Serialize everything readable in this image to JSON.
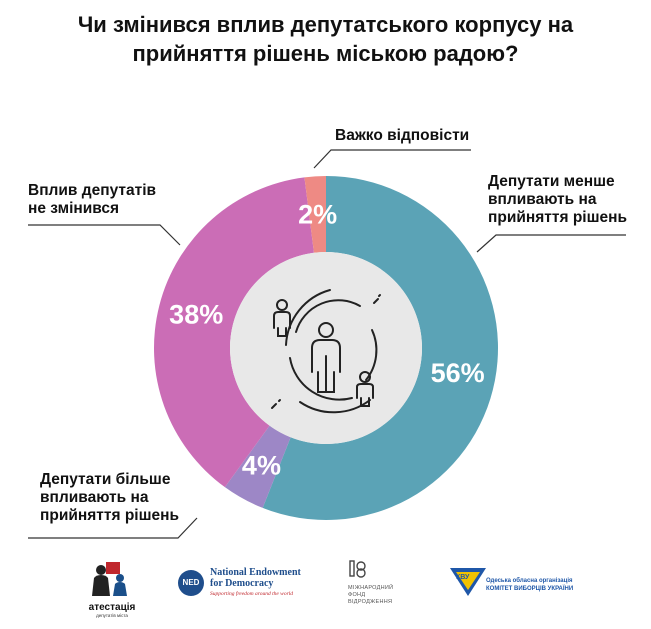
{
  "title": "Чи змінився вплив депутатського корпусу на прийняття рішень міською радою?",
  "colors": {
    "teal": "#5ba3b6",
    "pink": "#cb6db6",
    "lilac": "#9d87c6",
    "salmon": "#ee8a84",
    "center_circle": "#e8e8e8",
    "line": "#333333"
  },
  "chart_data": {
    "type": "pie",
    "donut": true,
    "title": "Чи змінився вплив депутатського корпусу на прийняття рішень міською радою?",
    "slices": [
      {
        "label": "Депутати менше впливають на прийняття рішень",
        "value": 56,
        "display": "56%",
        "color": "#5ba3b6"
      },
      {
        "label": "Депутати більше впливають на прийняття рішень",
        "value": 4,
        "display": "4%",
        "color": "#9d87c6"
      },
      {
        "label": "Вплив депутатів не змінився",
        "value": 38,
        "display": "38%",
        "color": "#cb6db6"
      },
      {
        "label": "Важко відповісти",
        "value": 2,
        "display": "2%",
        "color": "#ee8a84"
      }
    ]
  },
  "labels": {
    "less_line1": "Депутати менше",
    "less_line2": "впливають на",
    "less_line3": "прийняття рішень",
    "more_line1": "Депутати більше",
    "more_line2": "впливають на",
    "more_line3": "прийняття рішень",
    "same_line1": "Вплив депутатів",
    "same_line2": "не змінився",
    "hard": "Важко відповісти"
  },
  "center_icon": "people-circle-icon",
  "logos": {
    "atestatsia": {
      "name": "атестація",
      "sub": "депутатів міста",
      "icon": "figures-logo-icon"
    },
    "ned": {
      "badge": "NED",
      "line1": "National Endowment",
      "line2": "for Democracy",
      "tagline": "Supporting freedom around the world"
    },
    "irf": {
      "line1": "МІЖНАРОДНИЙ",
      "line2": "ФОНД",
      "line3": "ВІДРОДЖЕННЯ",
      "icon": "irf-logo-icon"
    },
    "cvu": {
      "badge": "КВУ",
      "line1": "Одеська обласна організація",
      "line2": "КОМІТЕТ ВИБОРЦІВ УКРАЇНИ"
    }
  }
}
